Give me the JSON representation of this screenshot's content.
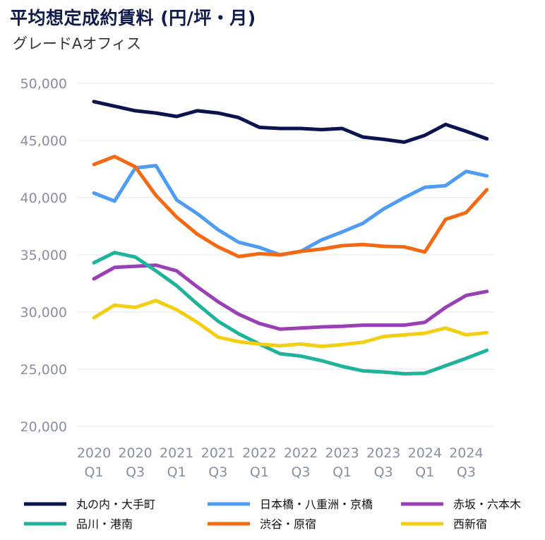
{
  "title": "平均想定成約賃料 (円/坪・月)",
  "subtitle": "グレードAオフィス",
  "chart_data": {
    "type": "line",
    "title": "平均想定成約賃料 (円/坪・月)",
    "subtitle": "グレードAオフィス",
    "ylim": [
      20000,
      50000
    ],
    "y_ticks": [
      "50,000",
      "45,000",
      "40,000",
      "35,000",
      "30,000",
      "25,000",
      "20,000"
    ],
    "y_tick_values": [
      50000,
      45000,
      40000,
      35000,
      30000,
      25000,
      20000
    ],
    "grid": true,
    "legend_position": "bottom",
    "x_tick_labels": [
      [
        "2020",
        "Q1"
      ],
      [
        "2020",
        "Q3"
      ],
      [
        "2021",
        "Q1"
      ],
      [
        "2021",
        "Q3"
      ],
      [
        "2022",
        "Q1"
      ],
      [
        "2022",
        "Q3"
      ],
      [
        "2023",
        "Q1"
      ],
      [
        "2023",
        "Q3"
      ],
      [
        "2024",
        "Q1"
      ],
      [
        "2024",
        "Q3"
      ]
    ],
    "x": [
      "2020Q1",
      "2020Q2",
      "2020Q3",
      "2020Q4",
      "2021Q1",
      "2021Q2",
      "2021Q3",
      "2021Q4",
      "2022Q1",
      "2022Q2",
      "2022Q3",
      "2022Q4",
      "2023Q1",
      "2023Q2",
      "2023Q3",
      "2023Q4",
      "2024Q1",
      "2024Q2",
      "2024Q3",
      "2024Q4"
    ],
    "series": [
      {
        "name": "丸の内・大手町",
        "color": "#0c1450",
        "values": [
          48400,
          48000,
          47600,
          47400,
          47100,
          47600,
          47400,
          47000,
          46150,
          46050,
          46050,
          45950,
          46050,
          45300,
          45100,
          44850,
          45450,
          46400,
          45800,
          45150
        ]
      },
      {
        "name": "日本橋・八重洲・京橋",
        "color": "#4f9cf5",
        "values": [
          40400,
          39700,
          42600,
          42800,
          39800,
          38600,
          37200,
          36100,
          35650,
          35000,
          35300,
          36300,
          37000,
          37750,
          39000,
          40000,
          40900,
          41050,
          42300,
          41900
        ]
      },
      {
        "name": "赤坂・六本木",
        "color": "#9b3fb7",
        "values": [
          32900,
          33900,
          34000,
          34100,
          33600,
          32200,
          30900,
          29800,
          29000,
          28500,
          28600,
          28700,
          28750,
          28850,
          28850,
          28850,
          29100,
          30400,
          31450,
          31800
        ]
      },
      {
        "name": "品川・港南",
        "color": "#1fb39c",
        "values": [
          34300,
          35200,
          34800,
          33600,
          32300,
          30700,
          29200,
          28100,
          27200,
          26350,
          26150,
          25750,
          25250,
          24850,
          24750,
          24600,
          24650,
          25300,
          25950,
          26650
        ]
      },
      {
        "name": "渋谷・原宿",
        "color": "#f46a12",
        "values": [
          42900,
          43600,
          42700,
          40200,
          38300,
          36800,
          35700,
          34850,
          35100,
          35000,
          35300,
          35500,
          35800,
          35900,
          35750,
          35700,
          35250,
          38100,
          38700,
          40700
        ]
      },
      {
        "name": "西新宿",
        "color": "#f2cf14",
        "values": [
          29500,
          30600,
          30400,
          31000,
          30200,
          29100,
          27800,
          27400,
          27200,
          27050,
          27200,
          27000,
          27150,
          27350,
          27850,
          28000,
          28150,
          28600,
          28000,
          28200
        ]
      }
    ]
  }
}
